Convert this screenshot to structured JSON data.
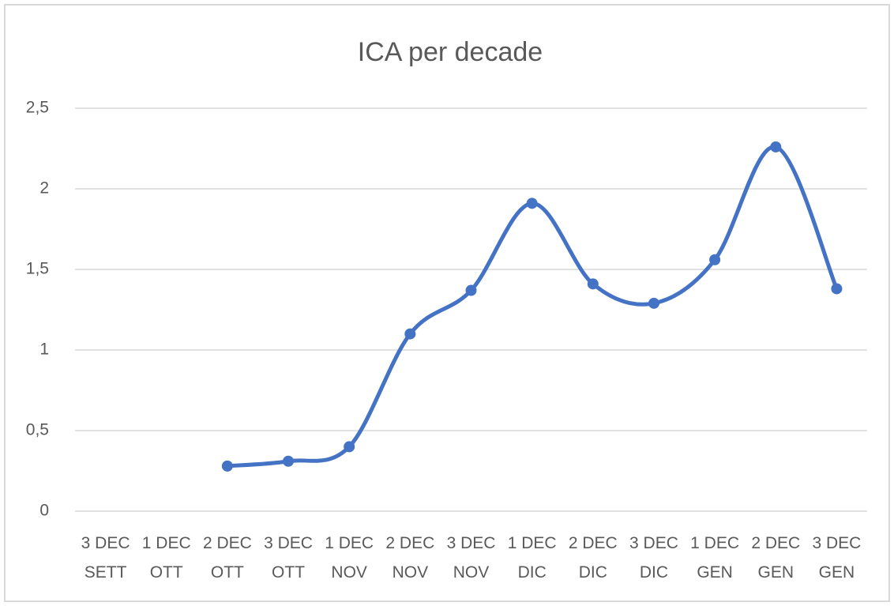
{
  "chart_data": {
    "type": "line",
    "title": "ICA per decade",
    "categories": [
      "3 DEC\nSETT",
      "1 DEC\nOTT",
      "2 DEC\nOTT",
      "3 DEC\nOTT",
      "1 DEC\nNOV",
      "2 DEC\nNOV",
      "3 DEC\nNOV",
      "1 DEC\nDIC",
      "2 DEC\nDIC",
      "3 DEC\nDIC",
      "1 DEC\nGEN",
      "2 DEC\nGEN",
      "3 DEC\nGEN"
    ],
    "series": [
      {
        "name": "ICA",
        "color": "#4472c4",
        "values": [
          null,
          null,
          0.28,
          0.31,
          0.4,
          1.1,
          1.37,
          1.91,
          1.41,
          1.29,
          1.56,
          2.26,
          1.38
        ]
      }
    ],
    "smooth": true,
    "ylim": [
      0,
      2.5
    ],
    "yticks": [
      0,
      {
        "value": 0.5,
        "label": "0,5"
      },
      1,
      {
        "value": 1.5,
        "label": "1,5"
      },
      2,
      {
        "value": 2.5,
        "label": "2,5"
      }
    ],
    "grid": true
  }
}
